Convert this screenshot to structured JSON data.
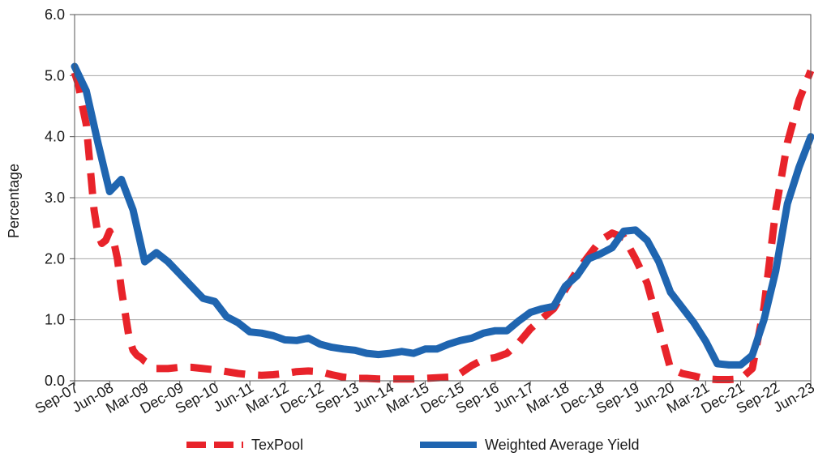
{
  "chart_data": {
    "type": "line",
    "xlabel": "",
    "ylabel": "Percentage",
    "ylim": [
      0,
      6
    ],
    "y_ticks": [
      "0.0",
      "1.0",
      "2.0",
      "3.0",
      "4.0",
      "5.0",
      "6.0"
    ],
    "x_ticks": [
      "Sep-07",
      "Jun-08",
      "Mar-09",
      "Dec-09",
      "Sep-10",
      "Jun-11",
      "Mar-12",
      "Dec-12",
      "Sep-13",
      "Jun-14",
      "Mar-15",
      "Dec-15",
      "Sep-16",
      "Jun-17",
      "Mar-18",
      "Dec-18",
      "Sep-19",
      "Jun-20",
      "Mar-21",
      "Dec-21",
      "Sep-22",
      "Jun-23"
    ],
    "grid": true,
    "legend_position": "bottom",
    "series": [
      {
        "name": "TexPool",
        "color": "#e8232a",
        "style": "dashed",
        "points": [
          [
            "2007-09",
            5.05
          ],
          [
            "2007-10",
            4.85
          ],
          [
            "2007-11",
            4.5
          ],
          [
            "2007-12",
            4.2
          ],
          [
            "2008-01",
            3.5
          ],
          [
            "2008-02",
            2.8
          ],
          [
            "2008-03",
            2.4
          ],
          [
            "2008-04",
            2.25
          ],
          [
            "2008-05",
            2.3
          ],
          [
            "2008-06",
            2.45
          ],
          [
            "2008-07",
            2.3
          ],
          [
            "2008-08",
            2.0
          ],
          [
            "2008-09",
            1.5
          ],
          [
            "2008-10",
            1.1
          ],
          [
            "2008-11",
            0.7
          ],
          [
            "2008-12",
            0.5
          ],
          [
            "2009-01",
            0.42
          ],
          [
            "2009-02",
            0.38
          ],
          [
            "2009-03",
            0.32
          ],
          [
            "2009-04",
            0.28
          ],
          [
            "2009-06",
            0.2
          ],
          [
            "2009-09",
            0.2
          ],
          [
            "2009-12",
            0.22
          ],
          [
            "2010-03",
            0.22
          ],
          [
            "2010-06",
            0.2
          ],
          [
            "2010-09",
            0.18
          ],
          [
            "2010-12",
            0.15
          ],
          [
            "2011-03",
            0.12
          ],
          [
            "2011-06",
            0.1
          ],
          [
            "2011-09",
            0.09
          ],
          [
            "2011-12",
            0.1
          ],
          [
            "2012-03",
            0.12
          ],
          [
            "2012-06",
            0.15
          ],
          [
            "2012-09",
            0.16
          ],
          [
            "2012-12",
            0.15
          ],
          [
            "2013-03",
            0.1
          ],
          [
            "2013-06",
            0.06
          ],
          [
            "2013-09",
            0.04
          ],
          [
            "2013-12",
            0.04
          ],
          [
            "2014-03",
            0.03
          ],
          [
            "2014-06",
            0.03
          ],
          [
            "2014-09",
            0.03
          ],
          [
            "2014-12",
            0.03
          ],
          [
            "2015-03",
            0.04
          ],
          [
            "2015-06",
            0.05
          ],
          [
            "2015-09",
            0.06
          ],
          [
            "2015-12",
            0.12
          ],
          [
            "2016-03",
            0.25
          ],
          [
            "2016-06",
            0.35
          ],
          [
            "2016-09",
            0.38
          ],
          [
            "2016-12",
            0.45
          ],
          [
            "2017-03",
            0.62
          ],
          [
            "2017-06",
            0.85
          ],
          [
            "2017-09",
            1.02
          ],
          [
            "2017-12",
            1.18
          ],
          [
            "2018-03",
            1.5
          ],
          [
            "2018-06",
            1.8
          ],
          [
            "2018-09",
            2.05
          ],
          [
            "2018-12",
            2.3
          ],
          [
            "2019-03",
            2.42
          ],
          [
            "2019-06",
            2.35
          ],
          [
            "2019-09",
            2.0
          ],
          [
            "2019-12",
            1.6
          ],
          [
            "2020-03",
            0.9
          ],
          [
            "2020-06",
            0.2
          ],
          [
            "2020-09",
            0.12
          ],
          [
            "2020-12",
            0.08
          ],
          [
            "2021-03",
            0.03
          ],
          [
            "2021-06",
            0.02
          ],
          [
            "2021-09",
            0.02
          ],
          [
            "2021-12",
            0.03
          ],
          [
            "2022-03",
            0.2
          ],
          [
            "2022-06",
            1.2
          ],
          [
            "2022-09",
            2.8
          ],
          [
            "2022-12",
            3.9
          ],
          [
            "2023-03",
            4.6
          ],
          [
            "2023-06",
            5.08
          ]
        ]
      },
      {
        "name": "Weighted Average Yield",
        "color": "#1f65b0",
        "style": "solid",
        "points": [
          [
            "2007-09",
            5.15
          ],
          [
            "2007-12",
            4.75
          ],
          [
            "2008-03",
            3.9
          ],
          [
            "2008-06",
            3.1
          ],
          [
            "2008-09",
            3.3
          ],
          [
            "2008-12",
            2.8
          ],
          [
            "2009-03",
            1.95
          ],
          [
            "2009-06",
            2.1
          ],
          [
            "2009-09",
            1.95
          ],
          [
            "2009-12",
            1.75
          ],
          [
            "2010-03",
            1.55
          ],
          [
            "2010-06",
            1.35
          ],
          [
            "2010-09",
            1.3
          ],
          [
            "2010-12",
            1.05
          ],
          [
            "2011-03",
            0.95
          ],
          [
            "2011-06",
            0.8
          ],
          [
            "2011-09",
            0.78
          ],
          [
            "2011-12",
            0.74
          ],
          [
            "2012-03",
            0.67
          ],
          [
            "2012-06",
            0.66
          ],
          [
            "2012-09",
            0.7
          ],
          [
            "2012-12",
            0.6
          ],
          [
            "2013-03",
            0.55
          ],
          [
            "2013-06",
            0.52
          ],
          [
            "2013-09",
            0.5
          ],
          [
            "2013-12",
            0.45
          ],
          [
            "2014-03",
            0.43
          ],
          [
            "2014-06",
            0.45
          ],
          [
            "2014-09",
            0.48
          ],
          [
            "2014-12",
            0.45
          ],
          [
            "2015-03",
            0.52
          ],
          [
            "2015-06",
            0.52
          ],
          [
            "2015-09",
            0.6
          ],
          [
            "2015-12",
            0.66
          ],
          [
            "2016-03",
            0.7
          ],
          [
            "2016-06",
            0.78
          ],
          [
            "2016-09",
            0.82
          ],
          [
            "2016-12",
            0.82
          ],
          [
            "2017-03",
            0.98
          ],
          [
            "2017-06",
            1.12
          ],
          [
            "2017-09",
            1.18
          ],
          [
            "2017-12",
            1.22
          ],
          [
            "2018-03",
            1.55
          ],
          [
            "2018-06",
            1.72
          ],
          [
            "2018-09",
            2.0
          ],
          [
            "2018-12",
            2.08
          ],
          [
            "2019-03",
            2.18
          ],
          [
            "2019-06",
            2.45
          ],
          [
            "2019-09",
            2.47
          ],
          [
            "2019-12",
            2.3
          ],
          [
            "2020-03",
            1.95
          ],
          [
            "2020-06",
            1.45
          ],
          [
            "2020-09",
            1.2
          ],
          [
            "2020-12",
            0.95
          ],
          [
            "2021-03",
            0.65
          ],
          [
            "2021-06",
            0.28
          ],
          [
            "2021-09",
            0.26
          ],
          [
            "2021-12",
            0.26
          ],
          [
            "2022-03",
            0.42
          ],
          [
            "2022-06",
            1.0
          ],
          [
            "2022-09",
            1.8
          ],
          [
            "2022-12",
            2.9
          ],
          [
            "2023-03",
            3.5
          ],
          [
            "2023-06",
            4.0
          ]
        ]
      }
    ]
  }
}
